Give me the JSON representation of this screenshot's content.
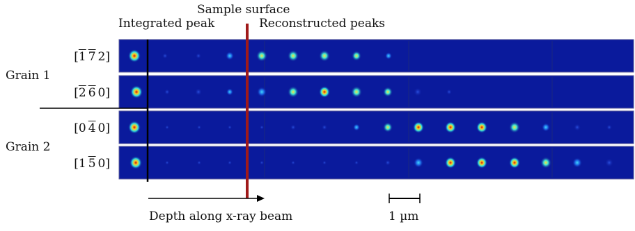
{
  "labels": {
    "sample_surface": "Sample surface",
    "integrated_peak": "Integrated peak",
    "reconstructed_peaks": "Reconstructed peaks",
    "grain1": "Grain 1",
    "grain2": "Grain 2",
    "depth": "Depth along x-ray beam",
    "scale": "1 µm"
  },
  "rows": [
    {
      "name": "row-1-7-7-2",
      "index": [
        {
          "d": "1",
          "bar": true
        },
        {
          "d": "7",
          "bar": true
        },
        {
          "d": "2",
          "bar": false
        }
      ]
    },
    {
      "name": "row-2-6-0",
      "index": [
        {
          "d": "2",
          "bar": true
        },
        {
          "d": "6",
          "bar": true
        },
        {
          "d": "0",
          "bar": false
        }
      ]
    },
    {
      "name": "row-0-4-0",
      "index": [
        {
          "d": "0",
          "bar": false
        },
        {
          "d": "4",
          "bar": true
        },
        {
          "d": "0",
          "bar": false
        }
      ]
    },
    {
      "name": "row-1-5-0",
      "index": [
        {
          "d": "1",
          "bar": false
        },
        {
          "d": "5",
          "bar": true
        },
        {
          "d": "0",
          "bar": false
        }
      ]
    }
  ],
  "colors": {
    "strip_bg": "#0a1a9c",
    "surface_line": "#a01a1a",
    "separator": "#000000"
  }
}
